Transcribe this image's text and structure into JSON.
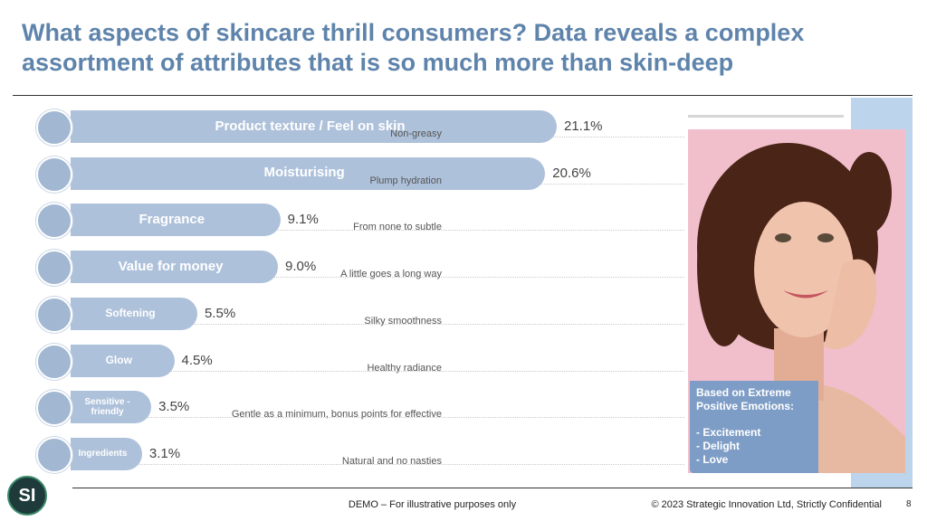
{
  "header": {
    "title": "What aspects of skincare thrill consumers? Data reveals a complex assortment of attributes that is so much more than skin-deep"
  },
  "chart_data": {
    "type": "bar",
    "orientation": "horizontal",
    "color": "#aec1da",
    "categories": [
      "Product texture / Feel on skin",
      "Moisturising",
      "Fragrance",
      "Value for money",
      "Softening",
      "Glow",
      "Sensitive - friendly",
      "Ingredients"
    ],
    "values": [
      21.1,
      20.6,
      9.1,
      9.0,
      5.5,
      4.5,
      3.5,
      3.1
    ],
    "value_labels": [
      "21.1%",
      "20.6%",
      "9.1%",
      "9.0%",
      "5.5%",
      "4.5%",
      "3.5%",
      "3.1%"
    ],
    "descriptions": [
      "Non-greasy",
      "Plump hydration",
      "From none to subtle",
      "A little goes a long way",
      "Silky smoothness",
      "Healthy radiance",
      "Gentle as a minimum, bonus points for effective",
      "Natural and no nasties"
    ]
  },
  "callout": {
    "heading": "Based on Extreme Positive Emotions:",
    "items": [
      "- Excitement",
      "- Delight",
      "- Love"
    ]
  },
  "footer": {
    "disclaimer": "DEMO – For illustrative purposes only",
    "copyright": "© 2023 Strategic Innovation  Ltd, Strictly Confidential",
    "page": "8",
    "logo": "SI"
  }
}
